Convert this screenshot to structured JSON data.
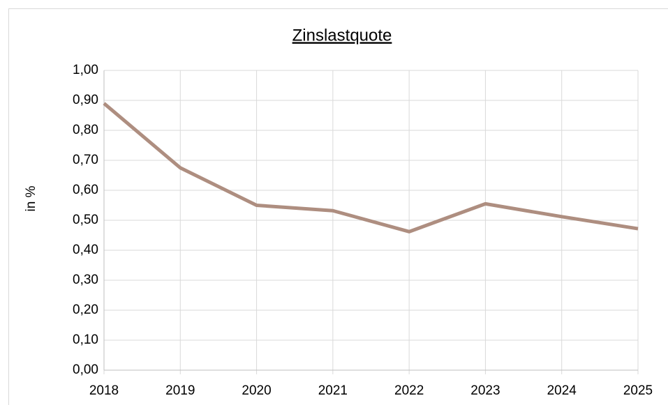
{
  "chart_data": {
    "type": "line",
    "title": "Zinslastquote",
    "y_label": "in %",
    "x": [
      2018,
      2019,
      2020,
      2021,
      2022,
      2023,
      2024,
      2025
    ],
    "series": [
      {
        "name": "Zinslastquote",
        "color": "#ae8e80",
        "values": [
          0.89,
          0.675,
          0.55,
          0.532,
          0.462,
          0.555,
          0.512,
          0.472
        ]
      }
    ],
    "xlim": [
      2018,
      2025
    ],
    "xticks": [
      2018,
      2019,
      2020,
      2021,
      2022,
      2023,
      2024,
      2025
    ],
    "ylim": [
      0,
      1
    ],
    "yticks": [
      {
        "value": 0,
        "label": "0,00"
      },
      {
        "value": 0.1,
        "label": "0,10"
      },
      {
        "value": 0.2,
        "label": "0,20"
      },
      {
        "value": 0.3,
        "label": "0,30"
      },
      {
        "value": 0.4,
        "label": "0,40"
      },
      {
        "value": 0.5,
        "label": "0,50"
      },
      {
        "value": 0.6,
        "label": "0,60"
      },
      {
        "value": 0.7,
        "label": "0,70"
      },
      {
        "value": 0.8,
        "label": "0,80"
      },
      {
        "value": 0.9,
        "label": "0,90"
      },
      {
        "value": 1,
        "label": "1,00"
      }
    ],
    "grid": true
  }
}
